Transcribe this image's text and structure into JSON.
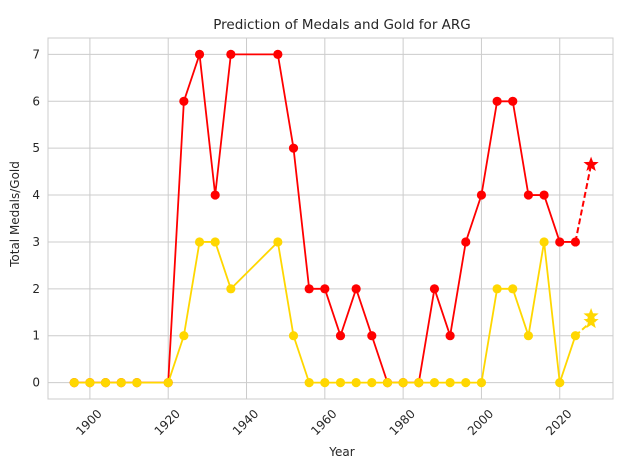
{
  "chart_data": {
    "type": "line",
    "title": "Prediction of Medals and Gold for ARG",
    "xlabel": "Year",
    "ylabel": "Total Medals/Gold",
    "xlim": [
      1889.3,
      2033.6
    ],
    "ylim": [
      -0.35,
      7.35
    ],
    "xticks": [
      1900,
      1920,
      1940,
      1960,
      1980,
      2000,
      2020
    ],
    "yticks": [
      0,
      1,
      2,
      3,
      4,
      5,
      6,
      7
    ],
    "grid": true,
    "series": [
      {
        "color": "#ff0000",
        "marker": "circle",
        "x": [
          1896,
          1900,
          1904,
          1908,
          1912,
          1920,
          1924,
          1928,
          1932,
          1936,
          1948,
          1952,
          1956,
          1960,
          1964,
          1968,
          1972,
          1976,
          1980,
          1984,
          1988,
          1992,
          1996,
          2000,
          2004,
          2008,
          2012,
          2016,
          2020,
          2024
        ],
        "values": [
          0,
          0,
          0,
          0,
          0,
          0,
          6,
          7,
          4,
          7,
          7,
          5,
          2,
          2,
          1,
          2,
          1,
          0,
          0,
          0,
          2,
          1,
          3,
          4,
          6,
          6,
          4,
          4,
          3,
          3
        ]
      },
      {
        "color": "#ffd700",
        "marker": "circle",
        "x": [
          1896,
          1900,
          1904,
          1908,
          1912,
          1920,
          1924,
          1928,
          1932,
          1936,
          1948,
          1952,
          1956,
          1960,
          1964,
          1968,
          1972,
          1976,
          1980,
          1984,
          1988,
          1992,
          1996,
          2000,
          2004,
          2008,
          2012,
          2016,
          2020,
          2024
        ],
        "values": [
          0,
          0,
          0,
          0,
          0,
          0,
          1,
          3,
          3,
          2,
          3,
          1,
          0,
          0,
          0,
          0,
          0,
          0,
          0,
          0,
          0,
          0,
          0,
          0,
          2,
          2,
          1,
          3,
          0,
          1
        ]
      }
    ],
    "predictions": [
      {
        "color": "#ff0000",
        "marker": "star",
        "x": [
          2024,
          2028
        ],
        "values": [
          3,
          4.65
        ]
      },
      {
        "color": "#ffd700",
        "marker": "star",
        "x": [
          2024,
          2028
        ],
        "values": [
          1,
          1.3
        ]
      },
      {
        "color": "#ffd700",
        "marker": "star",
        "x": [
          2028
        ],
        "values": [
          1.42
        ]
      }
    ]
  }
}
